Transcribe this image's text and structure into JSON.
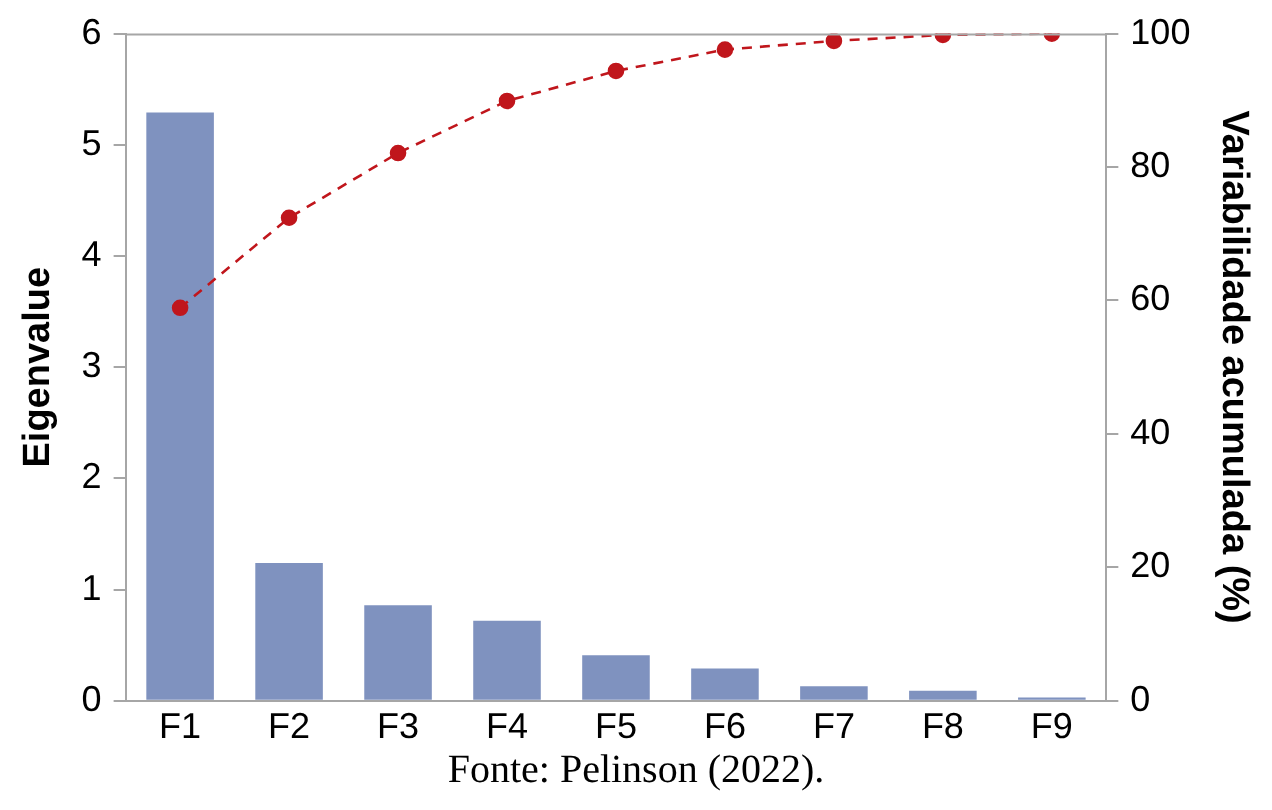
{
  "chart_data": {
    "type": "bar",
    "ylabel": "Eigenvalue",
    "y2label": "Variabilidade acumulada (%)",
    "categories": [
      "F1",
      "F2",
      "F3",
      "F4",
      "F5",
      "F6",
      "F7",
      "F8",
      "F9"
    ],
    "series": [
      {
        "color": "#7f92bf",
        "values": [
          5.29,
          1.24,
          0.86,
          0.72,
          0.41,
          0.29,
          0.13,
          0.09,
          0.03
        ]
      },
      {
        "type": "line",
        "axis": "y2",
        "color": "#c0161c",
        "marker": "circle",
        "line_style": "dashed",
        "values": [
          58.9,
          72.4,
          82.1,
          89.9,
          94.4,
          97.6,
          98.9,
          99.8,
          100
        ]
      }
    ],
    "ylim": [
      0,
      6
    ],
    "yticks": [
      0,
      1,
      2,
      3,
      4,
      5,
      6
    ],
    "y2lim": [
      0,
      100
    ],
    "y2ticks": [
      0,
      20,
      40,
      60,
      80,
      100
    ],
    "grid": false,
    "legend": false,
    "annotations": [
      "Fonte: Pelinson (2022)."
    ]
  }
}
